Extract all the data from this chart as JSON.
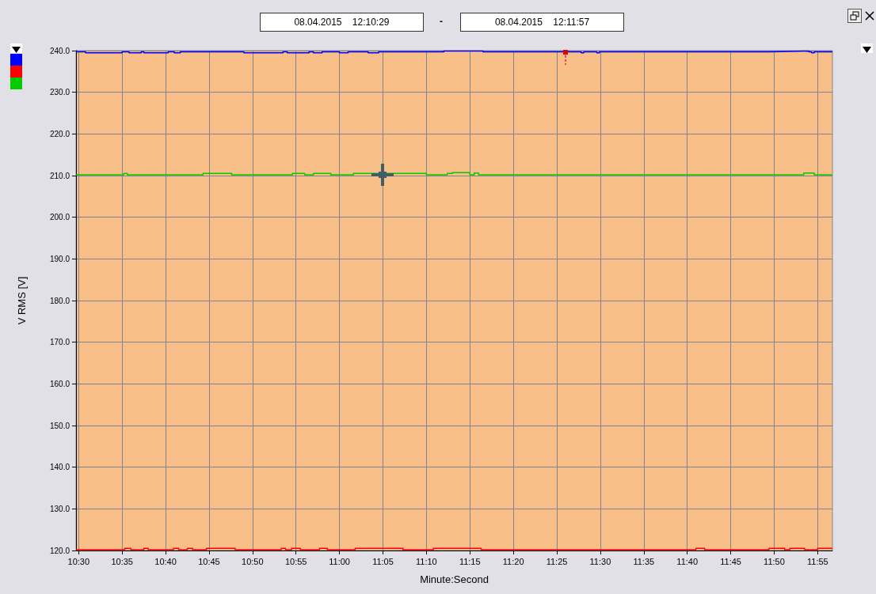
{
  "chart_data": {
    "type": "step",
    "xlabel": "Minute:Second",
    "ylabel": "V RMS [V]",
    "annotations": [
      "08.04.2015    12:10:29",
      "-",
      "08.04.2015    12:11:57"
    ],
    "xlim": [
      629.7,
      716.7
    ],
    "xticks": [
      {
        "value": 630,
        "label": "10:30"
      },
      {
        "value": 635,
        "label": "10:35"
      },
      {
        "value": 640,
        "label": "10:40"
      },
      {
        "value": 645,
        "label": "10:45"
      },
      {
        "value": 650,
        "label": "10:50"
      },
      {
        "value": 655,
        "label": "10:55"
      },
      {
        "value": 660,
        "label": "11:00"
      },
      {
        "value": 665,
        "label": "11:05"
      },
      {
        "value": 670,
        "label": "11:10"
      },
      {
        "value": 675,
        "label": "11:15"
      },
      {
        "value": 680,
        "label": "11:20"
      },
      {
        "value": 685,
        "label": "11:25"
      },
      {
        "value": 690,
        "label": "11:30"
      },
      {
        "value": 695,
        "label": "11:35"
      },
      {
        "value": 700,
        "label": "11:40"
      },
      {
        "value": 705,
        "label": "11:45"
      },
      {
        "value": 710,
        "label": "11:50"
      },
      {
        "value": 715,
        "label": "11:55"
      }
    ],
    "ylim": [
      120,
      240
    ],
    "yticks": [
      {
        "value": 120,
        "label": "120.0"
      },
      {
        "value": 130,
        "label": "130.0"
      },
      {
        "value": 140,
        "label": "140.0"
      },
      {
        "value": 150,
        "label": "150.0"
      },
      {
        "value": 160,
        "label": "160.0"
      },
      {
        "value": 170,
        "label": "170.0"
      },
      {
        "value": 180,
        "label": "180.0"
      },
      {
        "value": 190,
        "label": "190.0"
      },
      {
        "value": 200,
        "label": "200.0"
      },
      {
        "value": 210,
        "label": "210.0"
      },
      {
        "value": 220,
        "label": "220.0"
      },
      {
        "value": 230,
        "label": "230.0"
      },
      {
        "value": 240,
        "label": "240.0"
      }
    ],
    "grid": true,
    "marker": "none",
    "line_style": "solid",
    "series": [
      {
        "color": "#0000ff",
        "x": [
          629.7,
          630.8,
          635,
          635.8,
          637.2,
          637.5,
          640.3,
          641,
          641.7,
          649,
          653.5,
          654,
          656.5,
          657,
          658,
          660,
          661,
          663.3,
          664.5,
          665,
          672,
          676.5,
          687.8,
          688.1,
          689.6,
          689.9,
          709.5,
          712,
          714,
          714.3,
          714.6,
          716.7
        ],
        "values": [
          239.7,
          239.5,
          239.7,
          239.5,
          239.7,
          239.5,
          239.7,
          239.5,
          239.7,
          239.5,
          239.7,
          239.5,
          239.7,
          239.5,
          239.7,
          239.5,
          239.7,
          239.5,
          239.7,
          239.7,
          239.9,
          239.7,
          239.5,
          239.7,
          239.5,
          239.7,
          239.8,
          239.9,
          239.7,
          239.5,
          239.7,
          239.7
        ]
      },
      {
        "color": "#ff0000",
        "x": [
          629.7,
          635.3,
          636,
          637.5,
          638,
          640.9,
          641.5,
          642.5,
          643.1,
          644.7,
          648,
          653.3,
          653.8,
          654.5,
          655.5,
          657.7,
          658.6,
          661.8,
          667.3,
          670.8,
          676.3,
          701,
          702,
          709.4,
          711.2,
          711.8,
          713.5,
          715,
          716.7
        ],
        "values": [
          120.2,
          120.5,
          120.2,
          120.5,
          120.2,
          120.5,
          120.2,
          120.5,
          120.2,
          120.5,
          120.2,
          120.5,
          120.2,
          120.5,
          120.2,
          120.5,
          120.2,
          120.5,
          120.2,
          120.5,
          120.2,
          120.5,
          120.2,
          120.5,
          120.2,
          120.5,
          120.2,
          120.5,
          120.5
        ]
      },
      {
        "color": "#00cc00",
        "x": [
          629.7,
          635.2,
          635.6,
          644.3,
          647.6,
          654.6,
          656,
          657,
          659,
          661.6,
          670,
          672.4,
          673,
          675,
          675.5,
          676,
          713.4,
          714.6,
          716.7
        ],
        "values": [
          210.2,
          210.5,
          210.2,
          210.5,
          210.2,
          210.5,
          210.2,
          210.5,
          210.2,
          210.5,
          210.2,
          210.5,
          210.7,
          210.2,
          210.6,
          210.2,
          210.6,
          210.2,
          210.2
        ]
      }
    ]
  }
}
